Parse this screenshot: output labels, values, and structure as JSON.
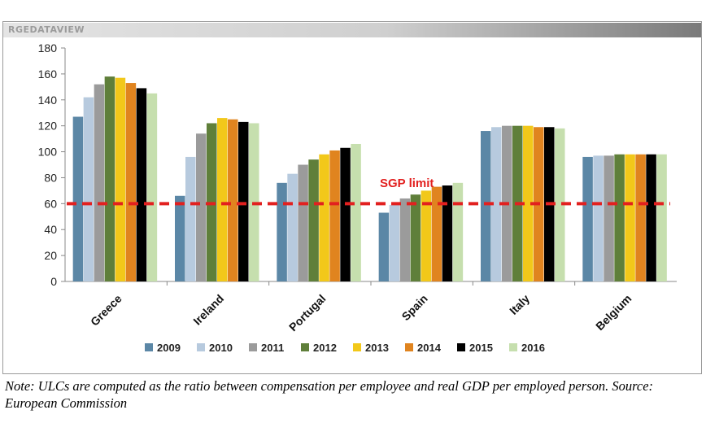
{
  "brand": "RGEDATAVIEW",
  "note": "Note: ULCs are computed as the ratio between compensation per employee and real GDP per employed person. Source: European Commission",
  "colors": {
    "2009": "#5b87a6",
    "2010": "#b7cade",
    "2011": "#9b9b9b",
    "2012": "#5f7f3a",
    "2013": "#f2c81a",
    "2014": "#e0841f",
    "2015": "#000000",
    "2016": "#c6dfae",
    "limit_line": "#e2201f"
  },
  "chart_data": {
    "type": "bar",
    "categories": [
      "Greece",
      "Ireland",
      "Portugal",
      "Spain",
      "Italy",
      "Belgium"
    ],
    "series": [
      {
        "name": "2009",
        "values": [
          127,
          66,
          76,
          53,
          116,
          96
        ]
      },
      {
        "name": "2010",
        "values": [
          142,
          96,
          83,
          59,
          119,
          97
        ]
      },
      {
        "name": "2011",
        "values": [
          152,
          114,
          90,
          64,
          120,
          97
        ]
      },
      {
        "name": "2012",
        "values": [
          158,
          122,
          94,
          67,
          120,
          98
        ]
      },
      {
        "name": "2013",
        "values": [
          157,
          126,
          98,
          70,
          120,
          98
        ]
      },
      {
        "name": "2014",
        "values": [
          153,
          125,
          101,
          73,
          119,
          98
        ]
      },
      {
        "name": "2015",
        "values": [
          149,
          123,
          103,
          74,
          119,
          98
        ]
      },
      {
        "name": "2016",
        "values": [
          145,
          122,
          106,
          76,
          118,
          98
        ]
      }
    ],
    "ylim": [
      0,
      180
    ],
    "yticks": [
      0,
      20,
      40,
      60,
      80,
      100,
      120,
      140,
      160,
      180
    ],
    "reference_line": {
      "value": 60,
      "label": "SGP limit",
      "style": "dashed"
    },
    "legend_position": "bottom",
    "grid": false
  }
}
